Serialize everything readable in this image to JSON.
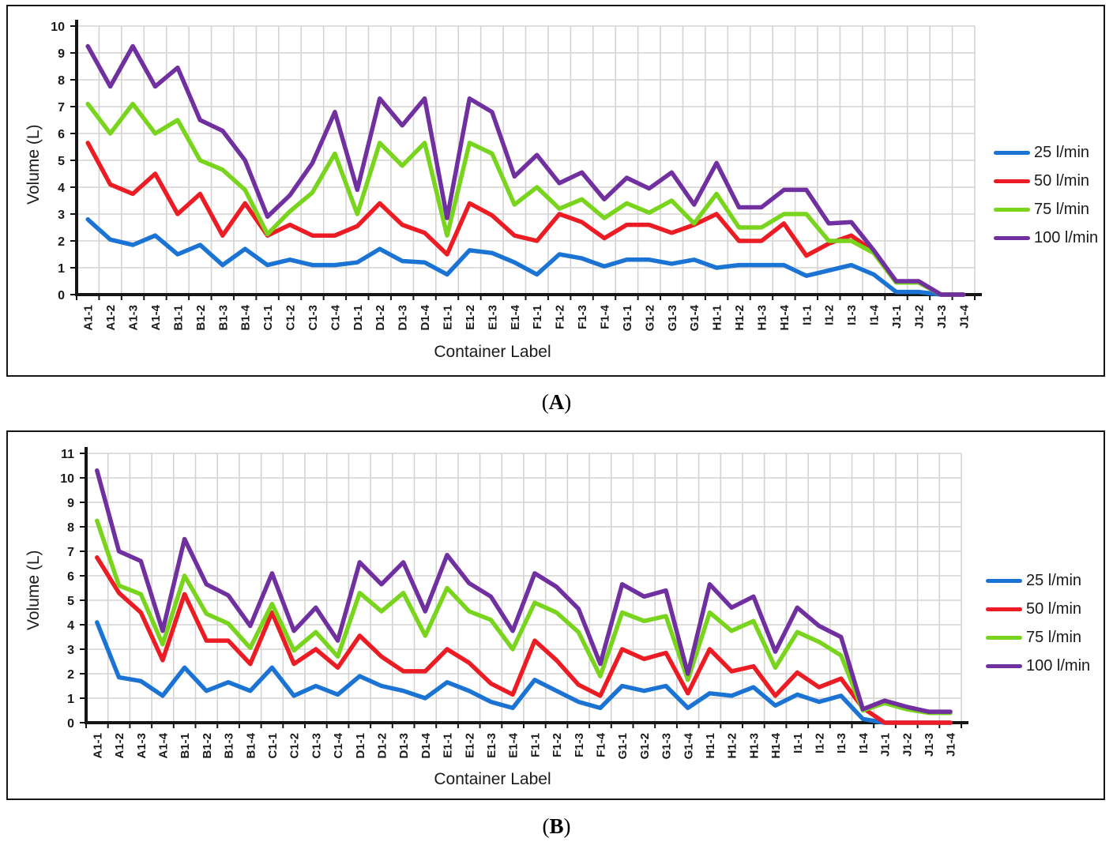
{
  "chart_data": [
    {
      "type": "line",
      "panel": "A",
      "caption_open": "(",
      "caption_letter": "A",
      "caption_close": ")",
      "x_axis": {
        "title": "Container Label"
      },
      "y_axis": {
        "title": "Volume (L)",
        "min": 0,
        "max": 10,
        "step": 1
      },
      "grid": true,
      "legend_position": "right",
      "categories": [
        "A1-1",
        "A1-2",
        "A1-3",
        "A1-4",
        "B1-1",
        "B1-2",
        "B1-3",
        "B1-4",
        "C1-1",
        "C1-2",
        "C1-3",
        "C1-4",
        "D1-1",
        "D1-2",
        "D1-3",
        "D1-4",
        "E1-1",
        "E1-2",
        "E1-3",
        "E1-4",
        "F1-1",
        "F1-2",
        "F1-3",
        "F1-4",
        "G1-1",
        "G1-2",
        "G1-3",
        "G1-4",
        "H1-1",
        "H1-2",
        "H1-3",
        "H1-4",
        "I1-1",
        "I1-2",
        "I1-3",
        "I1-4",
        "J1-1",
        "J1-2",
        "J1-3",
        "J1-4"
      ],
      "series": [
        {
          "name": "25 l/min",
          "color": "#1B74D4",
          "values": [
            2.8,
            2.05,
            1.85,
            2.2,
            1.5,
            1.85,
            1.1,
            1.7,
            1.1,
            1.3,
            1.1,
            1.1,
            1.2,
            1.7,
            1.25,
            1.2,
            0.75,
            1.65,
            1.55,
            1.2,
            0.75,
            1.5,
            1.35,
            1.05,
            1.3,
            1.3,
            1.15,
            1.3,
            1.0,
            1.1,
            1.1,
            1.1,
            0.7,
            0.9,
            1.1,
            0.75,
            0.1,
            0.1,
            0,
            0
          ]
        },
        {
          "name": "50 l/min",
          "color": "#EC1C24",
          "values": [
            5.65,
            4.1,
            3.75,
            4.5,
            3.0,
            3.75,
            2.2,
            3.4,
            2.2,
            2.6,
            2.2,
            2.2,
            2.55,
            3.4,
            2.6,
            2.3,
            1.5,
            3.4,
            2.95,
            2.2,
            2.0,
            3.0,
            2.7,
            2.1,
            2.6,
            2.6,
            2.3,
            2.6,
            3.0,
            2.0,
            2.0,
            2.65,
            1.45,
            1.9,
            2.2,
            1.6,
            0.5,
            0.45,
            0,
            0
          ]
        },
        {
          "name": "75 l/min",
          "color": "#78D41C",
          "values": [
            7.1,
            6.0,
            7.1,
            6.0,
            6.5,
            5.0,
            4.65,
            3.9,
            2.25,
            3.1,
            3.8,
            5.25,
            3.0,
            5.65,
            4.8,
            5.65,
            2.2,
            5.65,
            5.25,
            3.35,
            4.0,
            3.2,
            3.55,
            2.85,
            3.4,
            3.05,
            3.5,
            2.65,
            3.75,
            2.5,
            2.5,
            3.0,
            3.0,
            2.0,
            2.0,
            1.55,
            0.45,
            0.45,
            0,
            0
          ]
        },
        {
          "name": "100 l/min",
          "color": "#7030A0",
          "values": [
            9.25,
            7.75,
            9.25,
            7.75,
            8.45,
            6.5,
            6.1,
            5.0,
            2.9,
            3.7,
            4.9,
            6.8,
            3.9,
            7.3,
            6.3,
            7.3,
            2.85,
            7.3,
            6.8,
            4.4,
            5.2,
            4.15,
            4.55,
            3.55,
            4.35,
            3.95,
            4.55,
            3.35,
            4.9,
            3.25,
            3.25,
            3.9,
            3.9,
            2.65,
            2.7,
            1.65,
            0.5,
            0.5,
            0,
            0
          ]
        }
      ]
    },
    {
      "type": "line",
      "panel": "B",
      "caption_open": "(",
      "caption_letter": "B",
      "caption_close": ")",
      "x_axis": {
        "title": "Container Label"
      },
      "y_axis": {
        "title": "Volume (L)",
        "min": 0,
        "max": 11,
        "step": 1
      },
      "grid": true,
      "legend_position": "right",
      "categories": [
        "A1-1",
        "A1-2",
        "A1-3",
        "A1-4",
        "B1-1",
        "B1-2",
        "B1-3",
        "B1-4",
        "C1-1",
        "C1-2",
        "C1-3",
        "C1-4",
        "D1-1",
        "D1-2",
        "D1-3",
        "D1-4",
        "E1-1",
        "E1-2",
        "E1-3",
        "E1-4",
        "F1-1",
        "F1-2",
        "F1-3",
        "F1-4",
        "G1-1",
        "G1-2",
        "G1-3",
        "G1-4",
        "H1-1",
        "H1-2",
        "H1-3",
        "H1-4",
        "I1-1",
        "I1-2",
        "I1-3",
        "I1-4",
        "J1-1",
        "J1-2",
        "J1-3",
        "J1-4"
      ],
      "series": [
        {
          "name": "25 l/min",
          "color": "#1B74D4",
          "values": [
            4.1,
            1.85,
            1.7,
            1.1,
            2.25,
            1.3,
            1.65,
            1.3,
            2.25,
            1.1,
            1.5,
            1.15,
            1.9,
            1.5,
            1.3,
            1.0,
            1.65,
            1.3,
            0.85,
            0.6,
            1.75,
            1.3,
            0.85,
            0.6,
            1.5,
            1.3,
            1.5,
            0.6,
            1.2,
            1.1,
            1.45,
            0.7,
            1.15,
            0.85,
            1.1,
            0.15,
            0,
            0,
            0,
            0
          ]
        },
        {
          "name": "50 l/min",
          "color": "#EC1C24",
          "values": [
            6.75,
            5.3,
            4.5,
            2.55,
            5.25,
            3.35,
            3.35,
            2.4,
            4.5,
            2.4,
            3.0,
            2.25,
            3.55,
            2.7,
            2.1,
            2.1,
            3.0,
            2.45,
            1.6,
            1.15,
            3.35,
            2.55,
            1.55,
            1.1,
            3.0,
            2.6,
            2.85,
            1.2,
            3.0,
            2.1,
            2.3,
            1.1,
            2.05,
            1.45,
            1.8,
            0.6,
            0,
            0,
            0,
            0
          ]
        },
        {
          "name": "75 l/min",
          "color": "#78D41C",
          "values": [
            8.25,
            5.6,
            5.25,
            3.2,
            6.0,
            4.45,
            4.05,
            3.05,
            4.85,
            2.95,
            3.7,
            2.7,
            5.3,
            4.55,
            5.3,
            3.55,
            5.5,
            4.55,
            4.2,
            3.0,
            4.9,
            4.5,
            3.7,
            1.9,
            4.5,
            4.15,
            4.35,
            1.75,
            4.5,
            3.75,
            4.15,
            2.25,
            3.7,
            3.3,
            2.75,
            0.5,
            0.8,
            0.55,
            0.4,
            0.4
          ]
        },
        {
          "name": "100 l/min",
          "color": "#7030A0",
          "values": [
            10.3,
            7.0,
            6.6,
            3.75,
            7.5,
            5.65,
            5.2,
            3.95,
            6.1,
            3.75,
            4.7,
            3.35,
            6.55,
            5.65,
            6.55,
            4.55,
            6.85,
            5.7,
            5.15,
            3.75,
            6.1,
            5.55,
            4.65,
            2.4,
            5.65,
            5.15,
            5.4,
            2.0,
            5.65,
            4.7,
            5.15,
            2.9,
            4.7,
            3.95,
            3.5,
            0.55,
            0.9,
            0.65,
            0.45,
            0.45
          ]
        }
      ]
    }
  ]
}
